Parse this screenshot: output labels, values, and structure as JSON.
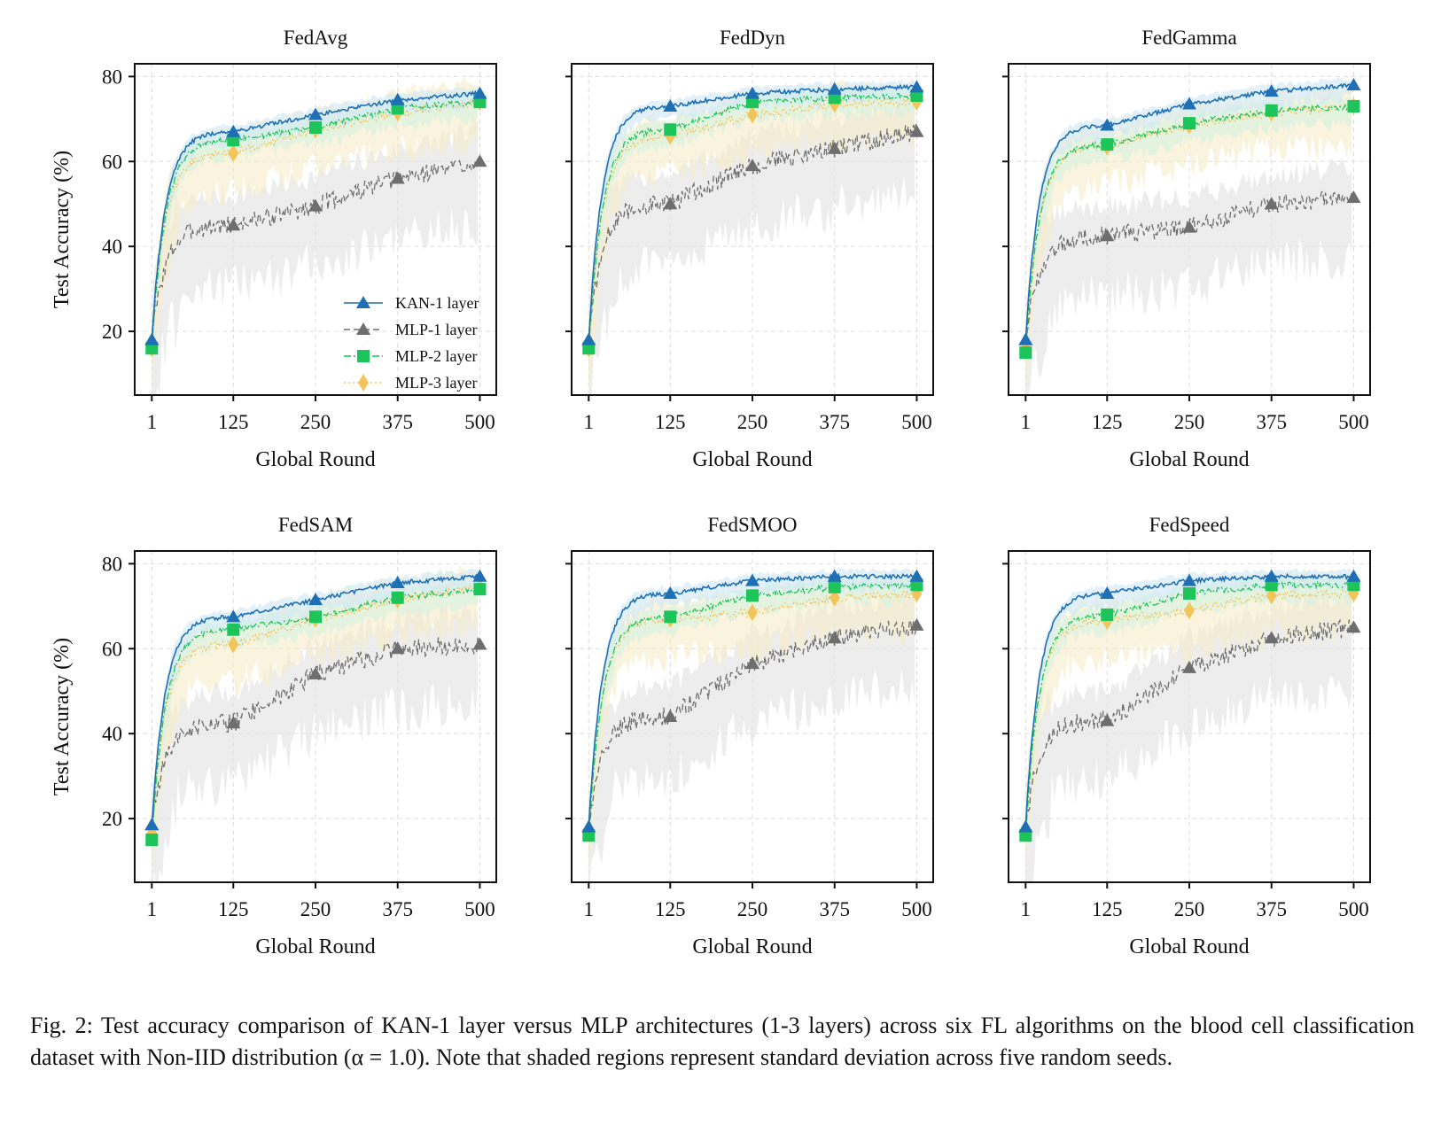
{
  "figure": {
    "caption": {
      "prefix": "Fig. 2:",
      "text": "Test accuracy comparison of KAN-1 layer versus MLP architectures (1-3 layers) across six FL algorithms on the blood cell classification dataset with Non-IID distribution (α = 1.0). Note that shaded regions represent standard deviation across five random seeds."
    },
    "xlabel": "Global Round",
    "ylabel": "Test Accuracy (%)"
  },
  "colors": {
    "kan1": "#1f6fb5",
    "mlp1": "#6e6e6e",
    "mlp2": "#1cc45a",
    "mlp3": "#f2c55c",
    "kan1_band": "#cfe8f5",
    "mlp1_band": "#e6e6e6",
    "mlp2_band": "#d6f2df",
    "mlp3_band": "#f7ecc8"
  },
  "legend": [
    {
      "key": "kan1",
      "label": "KAN-1 layer",
      "marker": "triangle",
      "dash": "solid"
    },
    {
      "key": "mlp1",
      "label": "MLP-1 layer",
      "marker": "triangle",
      "dash": "dashed"
    },
    {
      "key": "mlp2",
      "label": "MLP-2 layer",
      "marker": "square",
      "dash": "dashdot"
    },
    {
      "key": "mlp3",
      "label": "MLP-3 layer",
      "marker": "diamond",
      "dash": "dotted"
    }
  ],
  "chart_data": [
    {
      "type": "line",
      "title": "FedAvg",
      "xlabel": "Global Round",
      "ylabel": "Test Accuracy (%)",
      "xticks": [
        1,
        125,
        250,
        375,
        500
      ],
      "yticks": [
        20,
        40,
        60,
        80
      ],
      "xlim": [
        -25,
        525
      ],
      "ylim": [
        5,
        83
      ],
      "grid": true,
      "legend_position": "lower-right",
      "x": [
        1,
        125,
        250,
        375,
        500
      ],
      "series": [
        {
          "name": "KAN-1 layer",
          "key": "kan1",
          "values": [
            18,
            67,
            71,
            74.5,
            76
          ]
        },
        {
          "name": "MLP-1 layer",
          "key": "mlp1",
          "values": [
            18,
            45,
            49.5,
            56,
            60
          ]
        },
        {
          "name": "MLP-2 layer",
          "key": "mlp2",
          "values": [
            16,
            65,
            68,
            72.5,
            74
          ]
        },
        {
          "name": "MLP-3 layer",
          "key": "mlp3",
          "values": [
            16,
            62,
            67.5,
            71.5,
            74
          ]
        }
      ]
    },
    {
      "type": "line",
      "title": "FedDyn",
      "xlabel": "Global Round",
      "ylabel": "",
      "xticks": [
        1,
        125,
        250,
        375,
        500
      ],
      "yticks": [
        20,
        40,
        60,
        80
      ],
      "xlim": [
        -25,
        525
      ],
      "ylim": [
        5,
        83
      ],
      "grid": true,
      "x": [
        1,
        125,
        250,
        375,
        500
      ],
      "series": [
        {
          "name": "KAN-1 layer",
          "key": "kan1",
          "values": [
            18,
            73,
            76,
            77,
            77.5
          ]
        },
        {
          "name": "MLP-1 layer",
          "key": "mlp1",
          "values": [
            18,
            50,
            59,
            63,
            67
          ]
        },
        {
          "name": "MLP-2 layer",
          "key": "mlp2",
          "values": [
            16,
            67.5,
            74,
            75,
            75.5
          ]
        },
        {
          "name": "MLP-3 layer",
          "key": "mlp3",
          "values": [
            16,
            66,
            71,
            73.5,
            74
          ]
        }
      ]
    },
    {
      "type": "line",
      "title": "FedGamma",
      "xlabel": "Global Round",
      "ylabel": "",
      "xticks": [
        1,
        125,
        250,
        375,
        500
      ],
      "yticks": [
        20,
        40,
        60,
        80
      ],
      "xlim": [
        -25,
        525
      ],
      "ylim": [
        5,
        83
      ],
      "grid": true,
      "x": [
        1,
        125,
        250,
        375,
        500
      ],
      "series": [
        {
          "name": "KAN-1 layer",
          "key": "kan1",
          "values": [
            18,
            68.5,
            73.5,
            76.5,
            78
          ]
        },
        {
          "name": "MLP-1 layer",
          "key": "mlp1",
          "values": [
            18,
            42.5,
            44.5,
            50,
            51.5
          ]
        },
        {
          "name": "MLP-2 layer",
          "key": "mlp2",
          "values": [
            15,
            64,
            69,
            72,
            73
          ]
        },
        {
          "name": "MLP-3 layer",
          "key": "mlp3",
          "values": [
            16,
            63.5,
            68.5,
            71.5,
            73
          ]
        }
      ]
    },
    {
      "type": "line",
      "title": "FedSAM",
      "xlabel": "Global Round",
      "ylabel": "Test Accuracy (%)",
      "xticks": [
        1,
        125,
        250,
        375,
        500
      ],
      "yticks": [
        20,
        40,
        60,
        80
      ],
      "xlim": [
        -25,
        525
      ],
      "ylim": [
        5,
        83
      ],
      "grid": true,
      "x": [
        1,
        125,
        250,
        375,
        500
      ],
      "series": [
        {
          "name": "KAN-1 layer",
          "key": "kan1",
          "values": [
            18.5,
            67.5,
            71.5,
            75.5,
            77
          ]
        },
        {
          "name": "MLP-1 layer",
          "key": "mlp1",
          "values": [
            18.5,
            42.5,
            54,
            60,
            61
          ]
        },
        {
          "name": "MLP-2 layer",
          "key": "mlp2",
          "values": [
            15,
            64.5,
            67.5,
            72,
            74
          ]
        },
        {
          "name": "MLP-3 layer",
          "key": "mlp3",
          "values": [
            16.5,
            61,
            67,
            71.5,
            74.5
          ]
        }
      ]
    },
    {
      "type": "line",
      "title": "FedSMOO",
      "xlabel": "Global Round",
      "ylabel": "",
      "xticks": [
        1,
        125,
        250,
        375,
        500
      ],
      "yticks": [
        20,
        40,
        60,
        80
      ],
      "xlim": [
        -25,
        525
      ],
      "ylim": [
        5,
        83
      ],
      "grid": true,
      "x": [
        1,
        125,
        250,
        375,
        500
      ],
      "series": [
        {
          "name": "KAN-1 layer",
          "key": "kan1",
          "values": [
            18,
            73,
            76,
            77,
            77
          ]
        },
        {
          "name": "MLP-1 layer",
          "key": "mlp1",
          "values": [
            18,
            44,
            56.5,
            62.5,
            65.5
          ]
        },
        {
          "name": "MLP-2 layer",
          "key": "mlp2",
          "values": [
            16,
            67.5,
            72.5,
            74.5,
            75
          ]
        },
        {
          "name": "MLP-3 layer",
          "key": "mlp3",
          "values": [
            16.5,
            67,
            68.5,
            72,
            73
          ]
        }
      ]
    },
    {
      "type": "line",
      "title": "FedSpeed",
      "xlabel": "Global Round",
      "ylabel": "",
      "xticks": [
        1,
        125,
        250,
        375,
        500
      ],
      "yticks": [
        20,
        40,
        60,
        80
      ],
      "xlim": [
        -25,
        525
      ],
      "ylim": [
        5,
        83
      ],
      "grid": true,
      "x": [
        1,
        125,
        250,
        375,
        500
      ],
      "series": [
        {
          "name": "KAN-1 layer",
          "key": "kan1",
          "values": [
            18,
            73,
            76,
            77,
            77
          ]
        },
        {
          "name": "MLP-1 layer",
          "key": "mlp1",
          "values": [
            18,
            43,
            55.5,
            62.5,
            65
          ]
        },
        {
          "name": "MLP-2 layer",
          "key": "mlp2",
          "values": [
            16,
            68,
            73,
            75,
            75
          ]
        },
        {
          "name": "MLP-3 layer",
          "key": "mlp3",
          "values": [
            16.5,
            66.5,
            69,
            72.5,
            73
          ]
        }
      ]
    }
  ]
}
